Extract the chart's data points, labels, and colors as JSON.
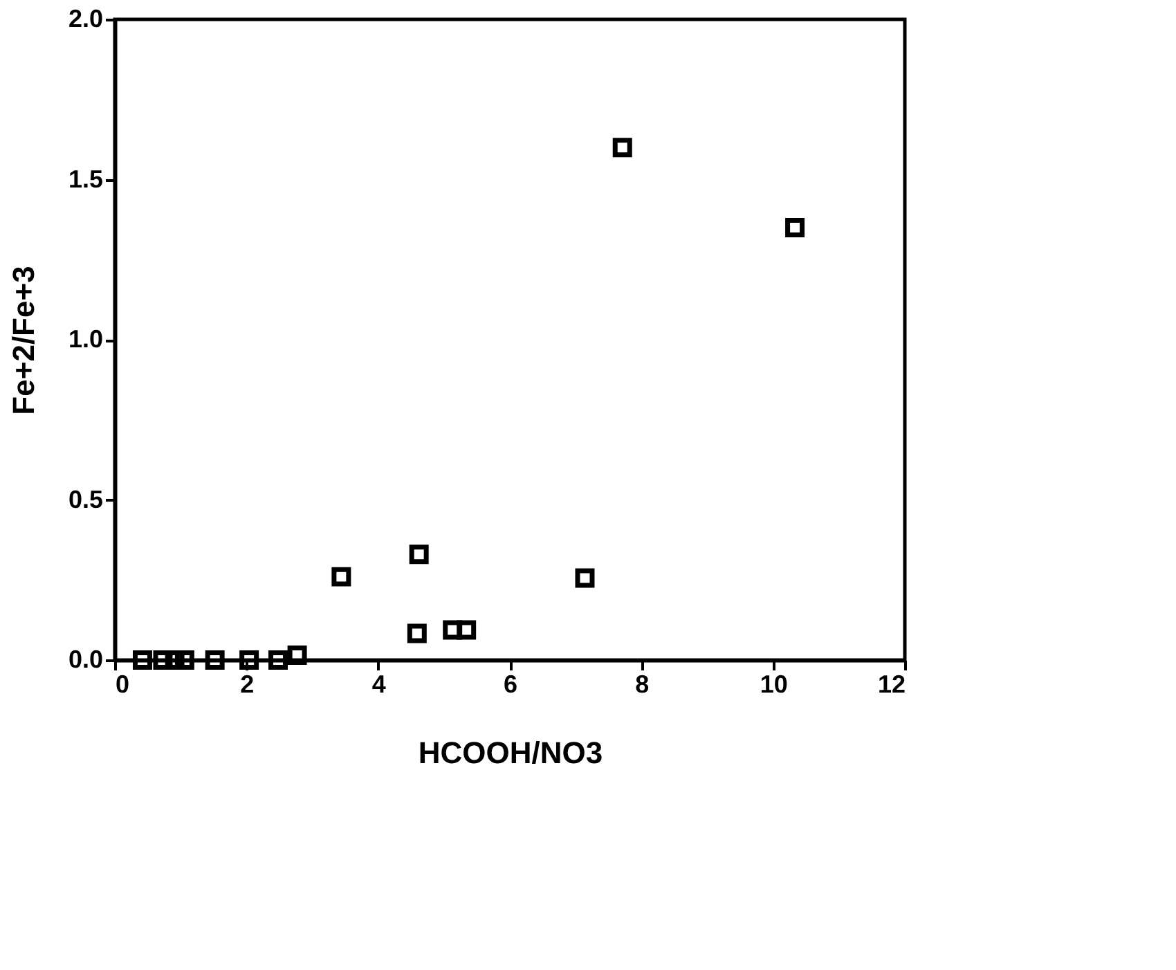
{
  "chart_data": {
    "type": "scatter",
    "xlabel": "HCOOH/NO3",
    "ylabel": "Fe+2/Fe+3",
    "x": [
      0.42,
      0.73,
      0.91,
      1.06,
      1.52,
      2.04,
      2.48,
      2.77,
      3.44,
      4.59,
      4.62,
      5.13,
      5.34,
      7.14,
      7.71,
      10.33
    ],
    "values": [
      0,
      0,
      0,
      0,
      0,
      0,
      0,
      0.015,
      0.26,
      0.083,
      0.33,
      0.094,
      0.094,
      0.256,
      1.6,
      1.35
    ],
    "color": "#000000",
    "marker": "square",
    "xlim": [
      0,
      12
    ],
    "xticks": [
      0,
      2,
      4,
      6,
      8,
      10,
      12
    ],
    "ylim": [
      0,
      2
    ],
    "yticks": [
      {
        "value": 0,
        "label": "0.0"
      },
      {
        "value": 0.5,
        "label": "0.5"
      },
      {
        "value": 1,
        "label": "1.0"
      },
      {
        "value": 1.5,
        "label": "1.5"
      },
      {
        "value": 2,
        "label": "2.0"
      }
    ],
    "grid": false
  }
}
